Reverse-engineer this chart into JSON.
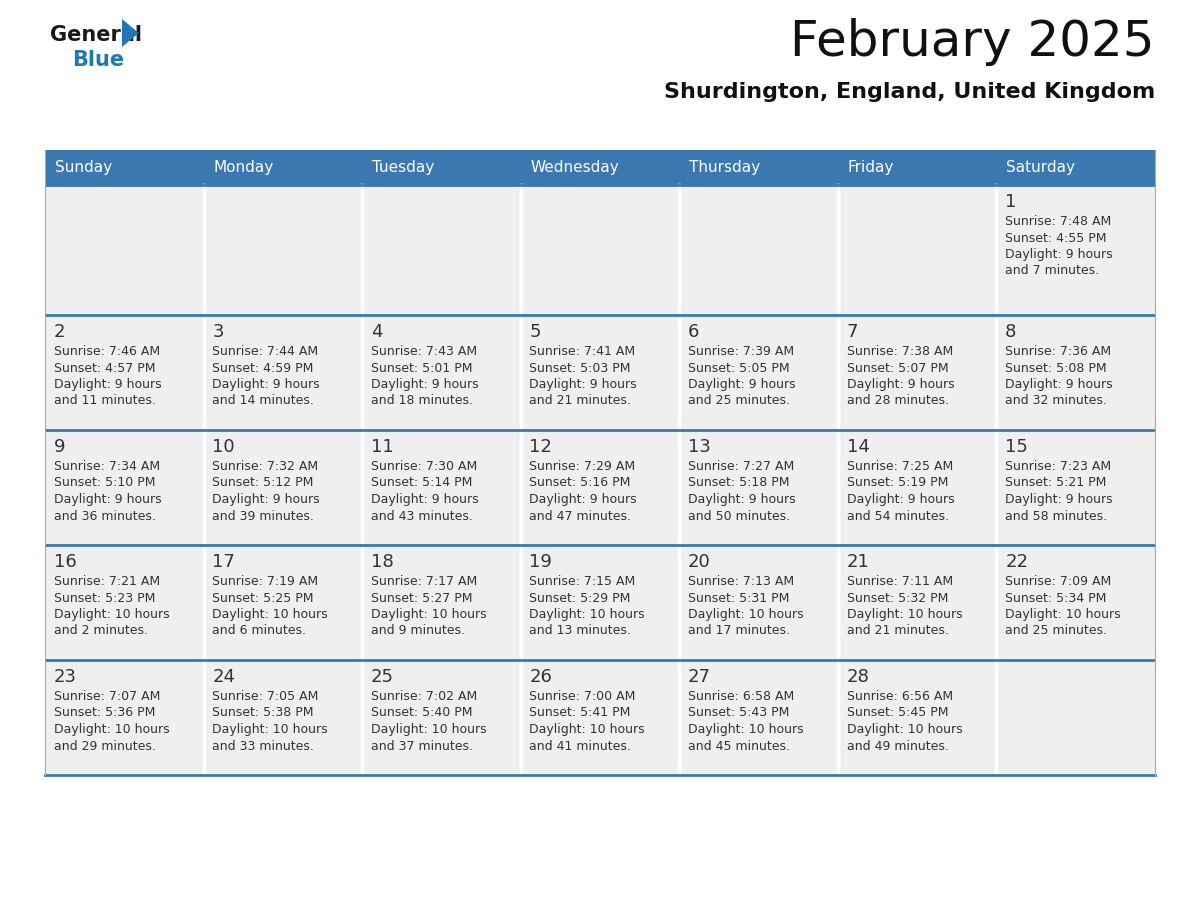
{
  "title": "February 2025",
  "subtitle": "Shurdington, England, United Kingdom",
  "header_bg": "#3b78b0",
  "header_text_color": "#ffffff",
  "cell_bg": "#efefef",
  "separator_color": "#3b78b0",
  "day_number_color": "#333333",
  "info_text_color": "#333333",
  "days_of_week": [
    "Sunday",
    "Monday",
    "Tuesday",
    "Wednesday",
    "Thursday",
    "Friday",
    "Saturday"
  ],
  "calendar_data": [
    [
      {
        "day": null,
        "info": null
      },
      {
        "day": null,
        "info": null
      },
      {
        "day": null,
        "info": null
      },
      {
        "day": null,
        "info": null
      },
      {
        "day": null,
        "info": null
      },
      {
        "day": null,
        "info": null
      },
      {
        "day": 1,
        "info": "Sunrise: 7:48 AM\nSunset: 4:55 PM\nDaylight: 9 hours\nand 7 minutes."
      }
    ],
    [
      {
        "day": 2,
        "info": "Sunrise: 7:46 AM\nSunset: 4:57 PM\nDaylight: 9 hours\nand 11 minutes."
      },
      {
        "day": 3,
        "info": "Sunrise: 7:44 AM\nSunset: 4:59 PM\nDaylight: 9 hours\nand 14 minutes."
      },
      {
        "day": 4,
        "info": "Sunrise: 7:43 AM\nSunset: 5:01 PM\nDaylight: 9 hours\nand 18 minutes."
      },
      {
        "day": 5,
        "info": "Sunrise: 7:41 AM\nSunset: 5:03 PM\nDaylight: 9 hours\nand 21 minutes."
      },
      {
        "day": 6,
        "info": "Sunrise: 7:39 AM\nSunset: 5:05 PM\nDaylight: 9 hours\nand 25 minutes."
      },
      {
        "day": 7,
        "info": "Sunrise: 7:38 AM\nSunset: 5:07 PM\nDaylight: 9 hours\nand 28 minutes."
      },
      {
        "day": 8,
        "info": "Sunrise: 7:36 AM\nSunset: 5:08 PM\nDaylight: 9 hours\nand 32 minutes."
      }
    ],
    [
      {
        "day": 9,
        "info": "Sunrise: 7:34 AM\nSunset: 5:10 PM\nDaylight: 9 hours\nand 36 minutes."
      },
      {
        "day": 10,
        "info": "Sunrise: 7:32 AM\nSunset: 5:12 PM\nDaylight: 9 hours\nand 39 minutes."
      },
      {
        "day": 11,
        "info": "Sunrise: 7:30 AM\nSunset: 5:14 PM\nDaylight: 9 hours\nand 43 minutes."
      },
      {
        "day": 12,
        "info": "Sunrise: 7:29 AM\nSunset: 5:16 PM\nDaylight: 9 hours\nand 47 minutes."
      },
      {
        "day": 13,
        "info": "Sunrise: 7:27 AM\nSunset: 5:18 PM\nDaylight: 9 hours\nand 50 minutes."
      },
      {
        "day": 14,
        "info": "Sunrise: 7:25 AM\nSunset: 5:19 PM\nDaylight: 9 hours\nand 54 minutes."
      },
      {
        "day": 15,
        "info": "Sunrise: 7:23 AM\nSunset: 5:21 PM\nDaylight: 9 hours\nand 58 minutes."
      }
    ],
    [
      {
        "day": 16,
        "info": "Sunrise: 7:21 AM\nSunset: 5:23 PM\nDaylight: 10 hours\nand 2 minutes."
      },
      {
        "day": 17,
        "info": "Sunrise: 7:19 AM\nSunset: 5:25 PM\nDaylight: 10 hours\nand 6 minutes."
      },
      {
        "day": 18,
        "info": "Sunrise: 7:17 AM\nSunset: 5:27 PM\nDaylight: 10 hours\nand 9 minutes."
      },
      {
        "day": 19,
        "info": "Sunrise: 7:15 AM\nSunset: 5:29 PM\nDaylight: 10 hours\nand 13 minutes."
      },
      {
        "day": 20,
        "info": "Sunrise: 7:13 AM\nSunset: 5:31 PM\nDaylight: 10 hours\nand 17 minutes."
      },
      {
        "day": 21,
        "info": "Sunrise: 7:11 AM\nSunset: 5:32 PM\nDaylight: 10 hours\nand 21 minutes."
      },
      {
        "day": 22,
        "info": "Sunrise: 7:09 AM\nSunset: 5:34 PM\nDaylight: 10 hours\nand 25 minutes."
      }
    ],
    [
      {
        "day": 23,
        "info": "Sunrise: 7:07 AM\nSunset: 5:36 PM\nDaylight: 10 hours\nand 29 minutes."
      },
      {
        "day": 24,
        "info": "Sunrise: 7:05 AM\nSunset: 5:38 PM\nDaylight: 10 hours\nand 33 minutes."
      },
      {
        "day": 25,
        "info": "Sunrise: 7:02 AM\nSunset: 5:40 PM\nDaylight: 10 hours\nand 37 minutes."
      },
      {
        "day": 26,
        "info": "Sunrise: 7:00 AM\nSunset: 5:41 PM\nDaylight: 10 hours\nand 41 minutes."
      },
      {
        "day": 27,
        "info": "Sunrise: 6:58 AM\nSunset: 5:43 PM\nDaylight: 10 hours\nand 45 minutes."
      },
      {
        "day": 28,
        "info": "Sunrise: 6:56 AM\nSunset: 5:45 PM\nDaylight: 10 hours\nand 49 minutes."
      },
      {
        "day": null,
        "info": null
      }
    ]
  ],
  "logo_color_general": "#1a1a1a",
  "logo_color_blue": "#2176b5",
  "logo_triangle_color": "#2176b5",
  "title_fontsize": 36,
  "subtitle_fontsize": 16,
  "dow_fontsize": 11,
  "day_num_fontsize": 13,
  "info_fontsize": 9
}
